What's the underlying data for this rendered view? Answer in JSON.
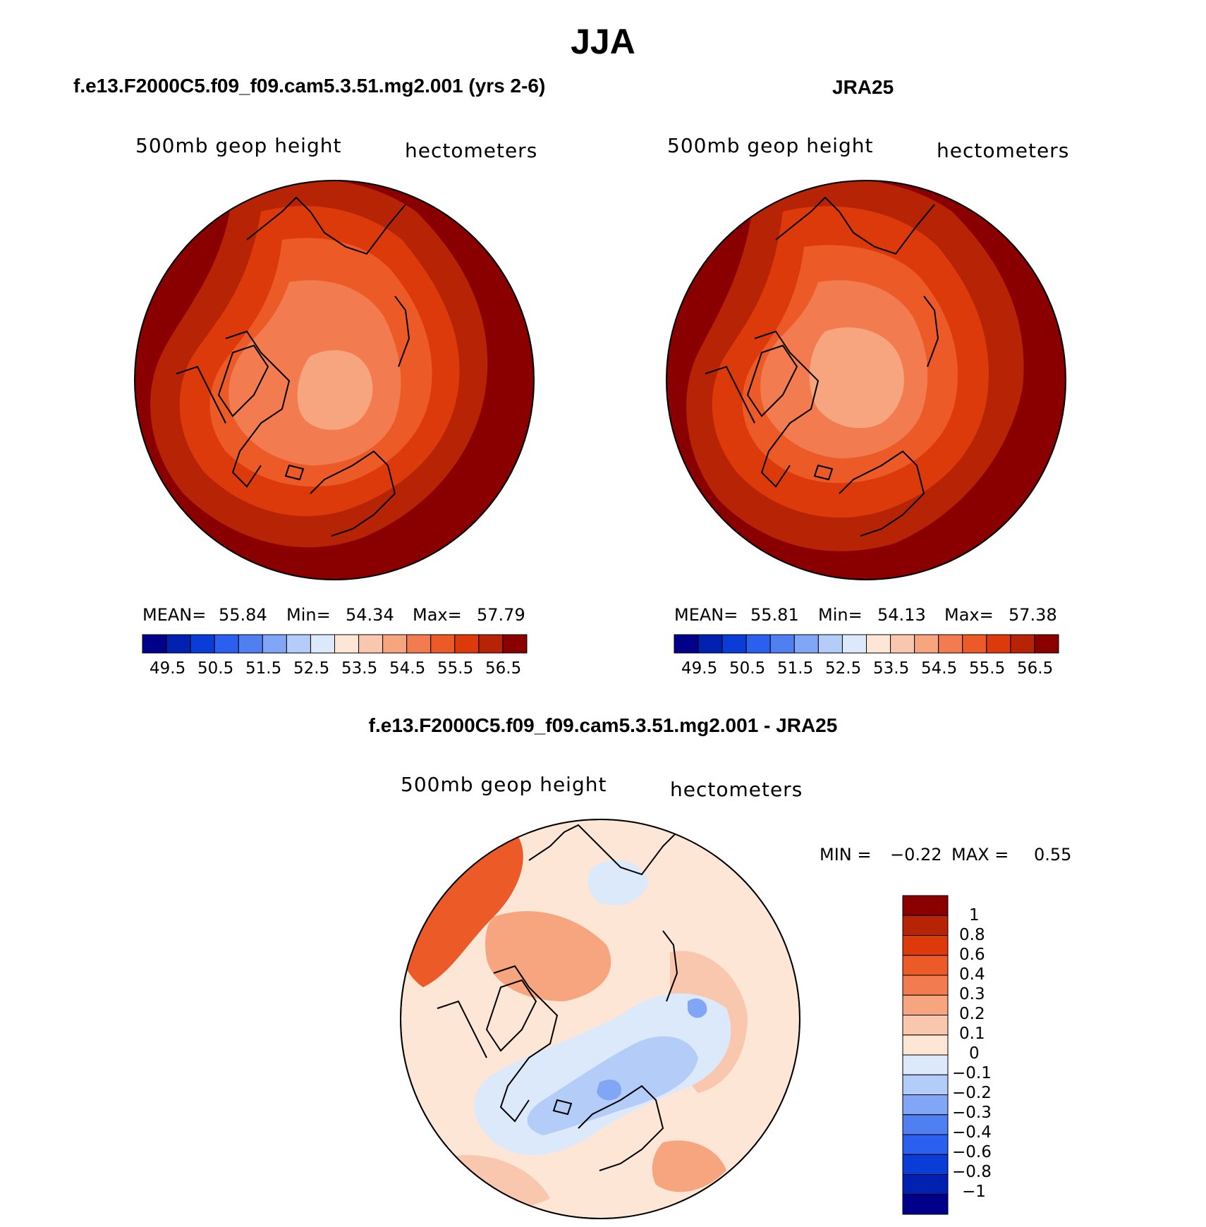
{
  "title": "JJA",
  "panels": [
    {
      "title": "f.e13.F2000C5.f09_f09.cam5.3.51.mg2.001 (yrs 2-6)",
      "variable": "500mb geop height",
      "units": "hectometers",
      "stats": {
        "mean_label": "MEAN=",
        "mean": "55.84",
        "min_label": "Min=",
        "min": "54.34",
        "max_label": "Max=",
        "max": "57.79"
      }
    },
    {
      "title": "JRA25",
      "variable": "500mb geop height",
      "units": "hectometers",
      "stats": {
        "mean_label": "MEAN=",
        "mean": "55.81",
        "min_label": "Min=",
        "min": "54.13",
        "max_label": "Max=",
        "max": "57.38"
      }
    }
  ],
  "colorbar_levels": [
    "49.5",
    "50.5",
    "51.5",
    "52.5",
    "53.5",
    "54.5",
    "55.5",
    "56.5"
  ],
  "colorbar_colors": [
    "#00008a",
    "#0020b0",
    "#0a3cd8",
    "#2a5ff0",
    "#4f7ff0",
    "#80a6f5",
    "#b4ccf8",
    "#dbe9fa",
    "#fde6d6",
    "#f9c7ad",
    "#f6a57e",
    "#f27c4f",
    "#ec5a28",
    "#dc3a0a",
    "#b62405",
    "#8a0000"
  ],
  "diff": {
    "title": "f.e13.F2000C5.f09_f09.cam5.3.51.mg2.001 - JRA25",
    "variable": "500mb geop height",
    "units": "hectometers",
    "min_label": "MIN =",
    "min": "−0.22",
    "max_label": "MAX =",
    "max": "0.55",
    "levels": [
      "1",
      "0.8",
      "0.6",
      "0.4",
      "0.3",
      "0.2",
      "0.1",
      "0",
      "−0.1",
      "−0.2",
      "−0.3",
      "−0.4",
      "−0.6",
      "−0.8",
      "−1"
    ],
    "colors": [
      "#8a0000",
      "#b62405",
      "#dc3a0a",
      "#ec5a28",
      "#f27c4f",
      "#f6a57e",
      "#f9c7ad",
      "#fde6d6",
      "#dbe9fa",
      "#b4ccf8",
      "#80a6f5",
      "#4f7ff0",
      "#2a5ff0",
      "#0a3cd8",
      "#0020b0",
      "#00008a"
    ]
  }
}
